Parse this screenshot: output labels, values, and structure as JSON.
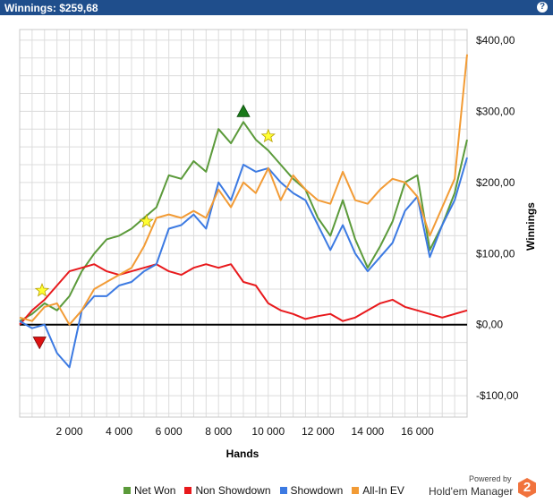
{
  "header": {
    "title": "Winnings: $259,68",
    "help_icon": "?"
  },
  "chart_data": {
    "type": "line",
    "xlabel": "Hands",
    "ylabel": "Winnings",
    "xlim": [
      0,
      18000
    ],
    "ylim": [
      -130,
      415
    ],
    "x_ticks": [
      2000,
      4000,
      6000,
      8000,
      10000,
      12000,
      14000,
      16000
    ],
    "x_tick_labels": [
      "2 000",
      "4 000",
      "6 000",
      "8 000",
      "10 000",
      "12 000",
      "14 000",
      "16 000"
    ],
    "y_ticks": [
      -100,
      0,
      100,
      200,
      300,
      400
    ],
    "y_tick_labels": [
      "-$100,00",
      "$0,00",
      "$100,00",
      "$200,00",
      "$300,00",
      "$400,00"
    ],
    "grid": true,
    "legend_position": "bottom",
    "series": [
      {
        "name": "Net Won",
        "color": "#5b9a3a",
        "x": [
          0,
          500,
          1000,
          1500,
          2000,
          2500,
          3000,
          3500,
          4000,
          4500,
          5000,
          5500,
          6000,
          6500,
          7000,
          7500,
          8000,
          8500,
          9000,
          9500,
          10000,
          10500,
          11000,
          11500,
          12000,
          12500,
          13000,
          13500,
          14000,
          14500,
          15000,
          15500,
          16000,
          16500,
          17000,
          17500,
          18000
        ],
        "values": [
          5,
          15,
          30,
          20,
          40,
          75,
          100,
          120,
          125,
          135,
          150,
          165,
          210,
          205,
          230,
          215,
          275,
          255,
          285,
          260,
          245,
          225,
          205,
          190,
          150,
          125,
          175,
          120,
          80,
          110,
          145,
          200,
          210,
          105,
          140,
          185,
          260
        ]
      },
      {
        "name": "Non Showdown",
        "color": "#e8191c",
        "x": [
          0,
          500,
          1000,
          1500,
          2000,
          2500,
          3000,
          3500,
          4000,
          4500,
          5000,
          5500,
          6000,
          6500,
          7000,
          7500,
          8000,
          8500,
          9000,
          9500,
          10000,
          10500,
          11000,
          11500,
          12000,
          12500,
          13000,
          13500,
          14000,
          14500,
          15000,
          15500,
          16000,
          16500,
          17000,
          17500,
          18000
        ],
        "values": [
          0,
          20,
          35,
          55,
          75,
          80,
          85,
          75,
          70,
          75,
          80,
          85,
          75,
          70,
          80,
          85,
          80,
          85,
          60,
          55,
          30,
          20,
          15,
          8,
          12,
          15,
          5,
          10,
          20,
          30,
          35,
          25,
          20,
          15,
          10,
          15,
          20
        ]
      },
      {
        "name": "Showdown",
        "color": "#3c7ae2",
        "x": [
          0,
          500,
          1000,
          1500,
          2000,
          2500,
          3000,
          3500,
          4000,
          4500,
          5000,
          5500,
          6000,
          6500,
          7000,
          7500,
          8000,
          8500,
          9000,
          9500,
          10000,
          10500,
          11000,
          11500,
          12000,
          12500,
          13000,
          13500,
          14000,
          14500,
          15000,
          15500,
          16000,
          16500,
          17000,
          17500,
          18000
        ],
        "values": [
          5,
          -5,
          0,
          -40,
          -60,
          20,
          40,
          40,
          55,
          60,
          75,
          85,
          135,
          140,
          155,
          135,
          200,
          175,
          225,
          215,
          220,
          200,
          185,
          175,
          140,
          105,
          140,
          100,
          75,
          95,
          115,
          160,
          180,
          95,
          140,
          175,
          235
        ]
      },
      {
        "name": "All-In EV",
        "color": "#f29b35",
        "x": [
          0,
          500,
          1000,
          1500,
          2000,
          2500,
          3000,
          3500,
          4000,
          4500,
          5000,
          5500,
          6000,
          6500,
          7000,
          7500,
          8000,
          8500,
          9000,
          9500,
          10000,
          10500,
          11000,
          11500,
          12000,
          12500,
          13000,
          13500,
          14000,
          14500,
          15000,
          15500,
          16000,
          16500,
          17000,
          17500,
          18000
        ],
        "values": [
          10,
          5,
          25,
          30,
          0,
          20,
          50,
          60,
          70,
          80,
          110,
          150,
          155,
          150,
          160,
          150,
          190,
          165,
          200,
          185,
          220,
          175,
          210,
          190,
          175,
          170,
          215,
          175,
          170,
          190,
          205,
          200,
          180,
          125,
          165,
          205,
          380
        ]
      }
    ],
    "annotations": [
      {
        "type": "triangle-up",
        "color": "#1a7a1a",
        "x": 9000,
        "y": 300,
        "label": ""
      },
      {
        "type": "triangle-down",
        "color": "#dd1111",
        "x": 800,
        "y": -25,
        "label": ""
      },
      {
        "type": "star",
        "color": "#ffff33",
        "x": 900,
        "y": 48,
        "label": ""
      },
      {
        "type": "star",
        "color": "#ffff33",
        "x": 5100,
        "y": 145,
        "label": ""
      },
      {
        "type": "star",
        "color": "#ffff33",
        "x": 10000,
        "y": 265,
        "label": ""
      }
    ]
  },
  "branding": {
    "powered_by": "Powered by",
    "name": "Hold'em Manager",
    "logo_digit": "2",
    "logo_color": "#f1733d"
  }
}
